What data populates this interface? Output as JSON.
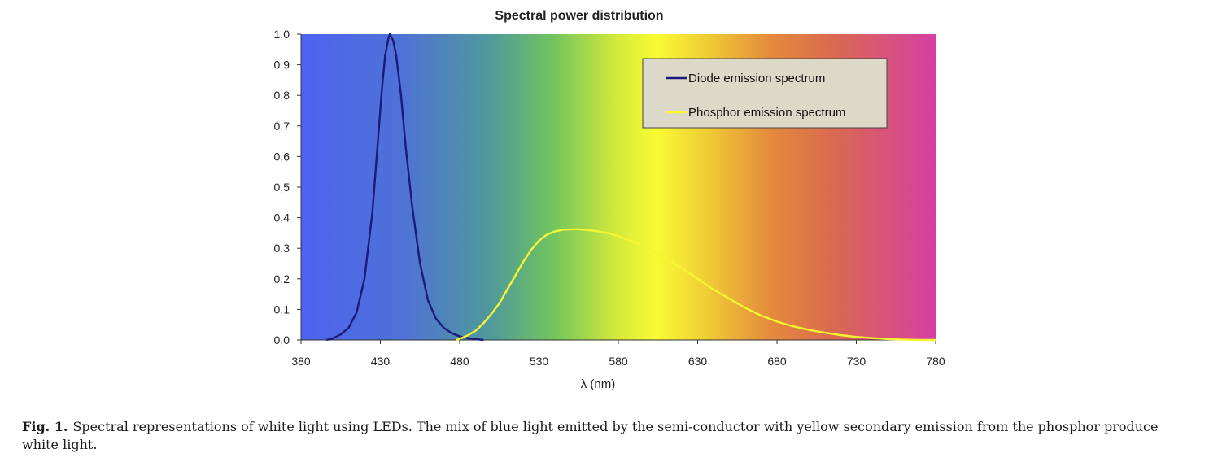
{
  "chart_data": {
    "type": "line",
    "title": "Spectral power distribution",
    "xlabel": "λ (nm)",
    "ylabel": "",
    "xlim": [
      380,
      780
    ],
    "ylim": [
      0,
      1.0
    ],
    "x_ticks": [
      "380",
      "430",
      "480",
      "530",
      "580",
      "630",
      "680",
      "730",
      "780"
    ],
    "y_ticks": [
      "0,0",
      "0,1",
      "0,2",
      "0,3",
      "0,4",
      "0,5",
      "0,6",
      "0,7",
      "0,8",
      "0,9",
      "1,0"
    ],
    "legend_position": "top-right",
    "background": "visible spectrum gradient",
    "series": [
      {
        "name": "Diode emission spectrum",
        "color": "#1c1a7a",
        "points": [
          [
            396,
            0.0
          ],
          [
            400,
            0.005
          ],
          [
            405,
            0.018
          ],
          [
            410,
            0.04
          ],
          [
            415,
            0.09
          ],
          [
            420,
            0.2
          ],
          [
            425,
            0.42
          ],
          [
            428,
            0.62
          ],
          [
            431,
            0.82
          ],
          [
            433,
            0.93
          ],
          [
            435,
            0.985
          ],
          [
            436,
            1.0
          ],
          [
            438,
            0.98
          ],
          [
            440,
            0.93
          ],
          [
            443,
            0.8
          ],
          [
            446,
            0.63
          ],
          [
            450,
            0.44
          ],
          [
            455,
            0.25
          ],
          [
            460,
            0.13
          ],
          [
            465,
            0.07
          ],
          [
            470,
            0.04
          ],
          [
            475,
            0.022
          ],
          [
            480,
            0.012
          ],
          [
            485,
            0.006
          ],
          [
            490,
            0.003
          ],
          [
            495,
            0.0
          ]
        ]
      },
      {
        "name": "Phosphor emission spectrum",
        "color": "#f5f534",
        "points": [
          [
            478,
            0.0
          ],
          [
            482,
            0.008
          ],
          [
            485,
            0.015
          ],
          [
            490,
            0.03
          ],
          [
            495,
            0.055
          ],
          [
            500,
            0.085
          ],
          [
            505,
            0.12
          ],
          [
            510,
            0.165
          ],
          [
            515,
            0.21
          ],
          [
            520,
            0.255
          ],
          [
            525,
            0.295
          ],
          [
            530,
            0.325
          ],
          [
            535,
            0.345
          ],
          [
            540,
            0.355
          ],
          [
            545,
            0.36
          ],
          [
            550,
            0.362
          ],
          [
            555,
            0.362
          ],
          [
            560,
            0.36
          ],
          [
            565,
            0.357
          ],
          [
            570,
            0.353
          ],
          [
            575,
            0.348
          ],
          [
            580,
            0.34
          ],
          [
            590,
            0.32
          ],
          [
            600,
            0.295
          ],
          [
            610,
            0.265
          ],
          [
            620,
            0.235
          ],
          [
            630,
            0.2
          ],
          [
            640,
            0.165
          ],
          [
            650,
            0.135
          ],
          [
            660,
            0.105
          ],
          [
            670,
            0.08
          ],
          [
            680,
            0.06
          ],
          [
            690,
            0.045
          ],
          [
            700,
            0.033
          ],
          [
            710,
            0.024
          ],
          [
            720,
            0.016
          ],
          [
            730,
            0.01
          ],
          [
            740,
            0.006
          ],
          [
            750,
            0.003
          ],
          [
            760,
            0.001
          ],
          [
            770,
            0.0
          ],
          [
            780,
            0.0
          ]
        ]
      }
    ]
  },
  "caption": {
    "label": "Fig. 1.",
    "text": "Spectral representations of white light using LEDs. The mix of blue light emitted by the semi-conductor with yellow secondary emission from the phosphor produce white light."
  }
}
